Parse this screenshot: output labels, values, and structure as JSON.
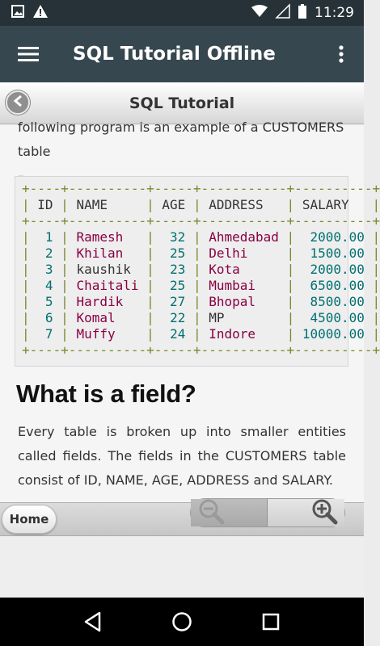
{
  "status": {
    "time": "11:29"
  },
  "appbar": {
    "title": "SQL Tutorial Offline"
  },
  "subheader": {
    "title": "SQL Tutorial"
  },
  "content": {
    "intro_line1": "following program is an example of a CUSTOMERS table",
    "intro_line2": "–",
    "table": {
      "border": "+----+----------+-----+-----------+----------+",
      "header": {
        "id": "ID",
        "name": "NAME",
        "age": "AGE",
        "address": "ADDRESS",
        "salary": "SALARY"
      },
      "rows": [
        {
          "id": "1",
          "name": "Ramesh",
          "age": "32",
          "address": "Ahmedabad",
          "salary": "2000.00"
        },
        {
          "id": "2",
          "name": "Khilan",
          "age": "25",
          "address": "Delhi",
          "salary": "1500.00"
        },
        {
          "id": "3",
          "name": "kaushik",
          "age": "23",
          "address": "Kota",
          "salary": "2000.00"
        },
        {
          "id": "4",
          "name": "Chaitali",
          "age": "25",
          "address": "Mumbai",
          "salary": "6500.00"
        },
        {
          "id": "5",
          "name": "Hardik",
          "age": "27",
          "address": "Bhopal",
          "salary": "8500.00"
        },
        {
          "id": "6",
          "name": "Komal",
          "age": "22",
          "address": "MP",
          "salary": "4500.00"
        },
        {
          "id": "7",
          "name": "Muffy",
          "age": "24",
          "address": "Indore",
          "salary": "10000.00"
        }
      ]
    },
    "heading": "What is a field?",
    "paragraph": "Every table is broken up into smaller entities called fields. The fields in the CUSTOMERS table consist of ID, NAME, AGE, ADDRESS and SALARY."
  },
  "bottombar": {
    "home_label": "Home"
  },
  "icons": {
    "status_left": [
      "image-icon",
      "warning-icon"
    ],
    "status_right": [
      "wifi-icon",
      "signal-icon",
      "battery-icon"
    ],
    "appbar": [
      "hamburger-menu-icon",
      "more-vert-icon"
    ],
    "subheader": [
      "back-arrow-icon"
    ],
    "zoom": [
      "zoom-out-icon",
      "zoom-in-icon"
    ],
    "navbar": [
      "nav-back-icon",
      "nav-home-icon",
      "nav-recents-icon"
    ]
  },
  "colors": {
    "statusbar": "#263238",
    "appbar": "#37474f",
    "code_border": "#7a8a2a",
    "code_number": "#007070",
    "code_string": "#880044"
  }
}
